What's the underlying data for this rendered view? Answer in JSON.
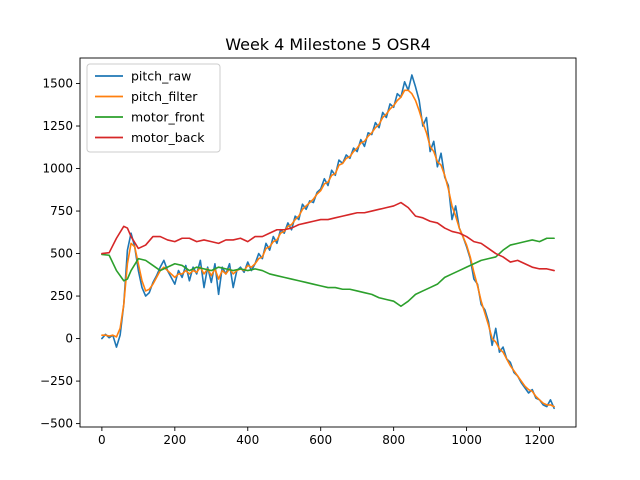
{
  "chart_data": {
    "type": "line",
    "title": "Week 4 Milestone 5 OSR4",
    "xlabel": "",
    "ylabel": "",
    "xlim": [
      -60,
      1300
    ],
    "ylim": [
      -520,
      1650
    ],
    "xticks": [
      0,
      200,
      400,
      600,
      800,
      1000,
      1200
    ],
    "yticks": [
      -500,
      -250,
      0,
      250,
      500,
      750,
      1000,
      1250,
      1500
    ],
    "grid": false,
    "legend_position": "upper left",
    "series": [
      {
        "name": "pitch_raw",
        "color": "#1f77b4",
        "x": [
          0,
          10,
          20,
          30,
          40,
          50,
          60,
          70,
          80,
          90,
          100,
          110,
          120,
          130,
          140,
          150,
          160,
          170,
          180,
          190,
          200,
          210,
          220,
          230,
          240,
          250,
          260,
          270,
          280,
          290,
          300,
          310,
          320,
          330,
          340,
          350,
          360,
          370,
          380,
          390,
          400,
          410,
          420,
          430,
          440,
          450,
          460,
          470,
          480,
          490,
          500,
          510,
          520,
          530,
          540,
          550,
          560,
          570,
          580,
          590,
          600,
          610,
          620,
          630,
          640,
          650,
          660,
          670,
          680,
          690,
          700,
          710,
          720,
          730,
          740,
          750,
          760,
          770,
          780,
          790,
          800,
          810,
          820,
          830,
          840,
          850,
          860,
          870,
          880,
          890,
          900,
          910,
          920,
          930,
          940,
          950,
          960,
          970,
          980,
          990,
          1000,
          1010,
          1020,
          1030,
          1040,
          1050,
          1060,
          1070,
          1080,
          1090,
          1100,
          1110,
          1120,
          1130,
          1140,
          1150,
          1160,
          1170,
          1180,
          1190,
          1200,
          1210,
          1220,
          1230,
          1240
        ],
        "values": [
          0,
          25,
          5,
          20,
          -50,
          20,
          200,
          520,
          620,
          540,
          400,
          300,
          250,
          270,
          330,
          370,
          420,
          460,
          400,
          360,
          320,
          400,
          360,
          430,
          340,
          420,
          380,
          460,
          300,
          420,
          330,
          440,
          260,
          420,
          380,
          440,
          300,
          400,
          420,
          390,
          450,
          400,
          440,
          500,
          470,
          560,
          520,
          600,
          560,
          640,
          620,
          680,
          640,
          720,
          700,
          790,
          760,
          810,
          800,
          860,
          880,
          940,
          900,
          990,
          960,
          1050,
          1030,
          1080,
          1060,
          1120,
          1100,
          1170,
          1130,
          1210,
          1200,
          1270,
          1240,
          1330,
          1300,
          1380,
          1360,
          1440,
          1420,
          1510,
          1460,
          1550,
          1480,
          1400,
          1250,
          1300,
          1100,
          1160,
          1010,
          1090,
          950,
          900,
          700,
          780,
          650,
          600,
          540,
          470,
          350,
          320,
          200,
          170,
          100,
          -40,
          60,
          -80,
          -50,
          -120,
          -140,
          -200,
          -220,
          -260,
          -290,
          -320,
          -300,
          -350,
          -360,
          -390,
          -400,
          -360,
          -410
        ]
      },
      {
        "name": "pitch_filter",
        "color": "#ff7f0e",
        "x": [
          0,
          10,
          20,
          30,
          40,
          50,
          60,
          70,
          80,
          90,
          100,
          110,
          120,
          130,
          140,
          150,
          160,
          170,
          180,
          190,
          200,
          210,
          220,
          230,
          240,
          250,
          260,
          270,
          280,
          290,
          300,
          310,
          320,
          330,
          340,
          350,
          360,
          370,
          380,
          390,
          400,
          410,
          420,
          430,
          440,
          450,
          460,
          470,
          480,
          490,
          500,
          510,
          520,
          530,
          540,
          550,
          560,
          570,
          580,
          590,
          600,
          610,
          620,
          630,
          640,
          650,
          660,
          670,
          680,
          690,
          700,
          710,
          720,
          730,
          740,
          750,
          760,
          770,
          780,
          790,
          800,
          810,
          820,
          830,
          840,
          850,
          860,
          870,
          880,
          890,
          900,
          910,
          920,
          930,
          940,
          950,
          960,
          970,
          980,
          990,
          1000,
          1010,
          1020,
          1030,
          1040,
          1050,
          1060,
          1070,
          1080,
          1090,
          1100,
          1110,
          1120,
          1130,
          1140,
          1150,
          1160,
          1170,
          1180,
          1190,
          1200,
          1210,
          1220,
          1230,
          1240
        ],
        "values": [
          20,
          20,
          15,
          20,
          10,
          60,
          200,
          440,
          560,
          540,
          440,
          340,
          280,
          290,
          320,
          360,
          400,
          420,
          400,
          380,
          360,
          380,
          380,
          400,
          380,
          400,
          390,
          420,
          380,
          410,
          370,
          410,
          350,
          400,
          380,
          410,
          380,
          400,
          410,
          400,
          430,
          420,
          440,
          470,
          480,
          530,
          540,
          570,
          580,
          620,
          630,
          660,
          670,
          700,
          720,
          760,
          780,
          800,
          820,
          850,
          870,
          910,
          920,
          960,
          970,
          1020,
          1030,
          1060,
          1070,
          1100,
          1120,
          1150,
          1160,
          1190,
          1210,
          1240,
          1260,
          1300,
          1320,
          1350,
          1370,
          1400,
          1420,
          1460,
          1460,
          1440,
          1400,
          1340,
          1270,
          1210,
          1130,
          1100,
          1040,
          1020,
          960,
          880,
          780,
          720,
          650,
          600,
          550,
          480,
          390,
          310,
          220,
          150,
          80,
          0,
          -20,
          -60,
          -80,
          -120,
          -160,
          -190,
          -220,
          -250,
          -280,
          -300,
          -310,
          -340,
          -360,
          -380,
          -390,
          -390,
          -400
        ]
      },
      {
        "name": "motor_front",
        "color": "#2ca02c",
        "x": [
          0,
          20,
          40,
          60,
          70,
          80,
          100,
          120,
          140,
          160,
          180,
          200,
          220,
          240,
          260,
          280,
          300,
          320,
          340,
          360,
          380,
          400,
          420,
          440,
          460,
          480,
          500,
          520,
          540,
          560,
          580,
          600,
          620,
          640,
          660,
          680,
          700,
          720,
          740,
          760,
          780,
          800,
          820,
          840,
          860,
          880,
          900,
          920,
          940,
          960,
          980,
          1000,
          1020,
          1040,
          1060,
          1080,
          1100,
          1120,
          1140,
          1160,
          1180,
          1200,
          1220,
          1240
        ],
        "values": [
          495,
          490,
          400,
          340,
          350,
          400,
          470,
          460,
          430,
          400,
          420,
          440,
          430,
          400,
          420,
          410,
          400,
          420,
          410,
          400,
          410,
          400,
          410,
          400,
          380,
          370,
          360,
          350,
          340,
          330,
          320,
          310,
          300,
          300,
          290,
          290,
          280,
          270,
          260,
          240,
          230,
          220,
          190,
          220,
          260,
          280,
          300,
          320,
          360,
          380,
          400,
          420,
          440,
          460,
          470,
          480,
          520,
          550,
          560,
          570,
          580,
          570,
          590,
          590
        ]
      },
      {
        "name": "motor_back",
        "color": "#d62728",
        "x": [
          0,
          20,
          40,
          60,
          70,
          80,
          100,
          120,
          140,
          160,
          180,
          200,
          220,
          240,
          260,
          280,
          300,
          320,
          340,
          360,
          380,
          400,
          420,
          440,
          460,
          480,
          500,
          520,
          540,
          560,
          580,
          600,
          620,
          640,
          660,
          680,
          700,
          720,
          740,
          760,
          780,
          800,
          820,
          840,
          860,
          880,
          900,
          920,
          940,
          960,
          980,
          1000,
          1020,
          1040,
          1060,
          1080,
          1100,
          1120,
          1140,
          1160,
          1180,
          1200,
          1220,
          1240
        ],
        "values": [
          500,
          505,
          590,
          660,
          650,
          600,
          530,
          550,
          600,
          600,
          580,
          570,
          590,
          590,
          570,
          580,
          570,
          560,
          580,
          580,
          590,
          570,
          600,
          600,
          620,
          640,
          640,
          650,
          670,
          680,
          690,
          700,
          700,
          710,
          720,
          730,
          740,
          740,
          750,
          760,
          770,
          780,
          800,
          770,
          720,
          710,
          690,
          680,
          650,
          630,
          620,
          600,
          570,
          560,
          530,
          500,
          480,
          450,
          460,
          440,
          420,
          410,
          410,
          400
        ]
      }
    ]
  }
}
